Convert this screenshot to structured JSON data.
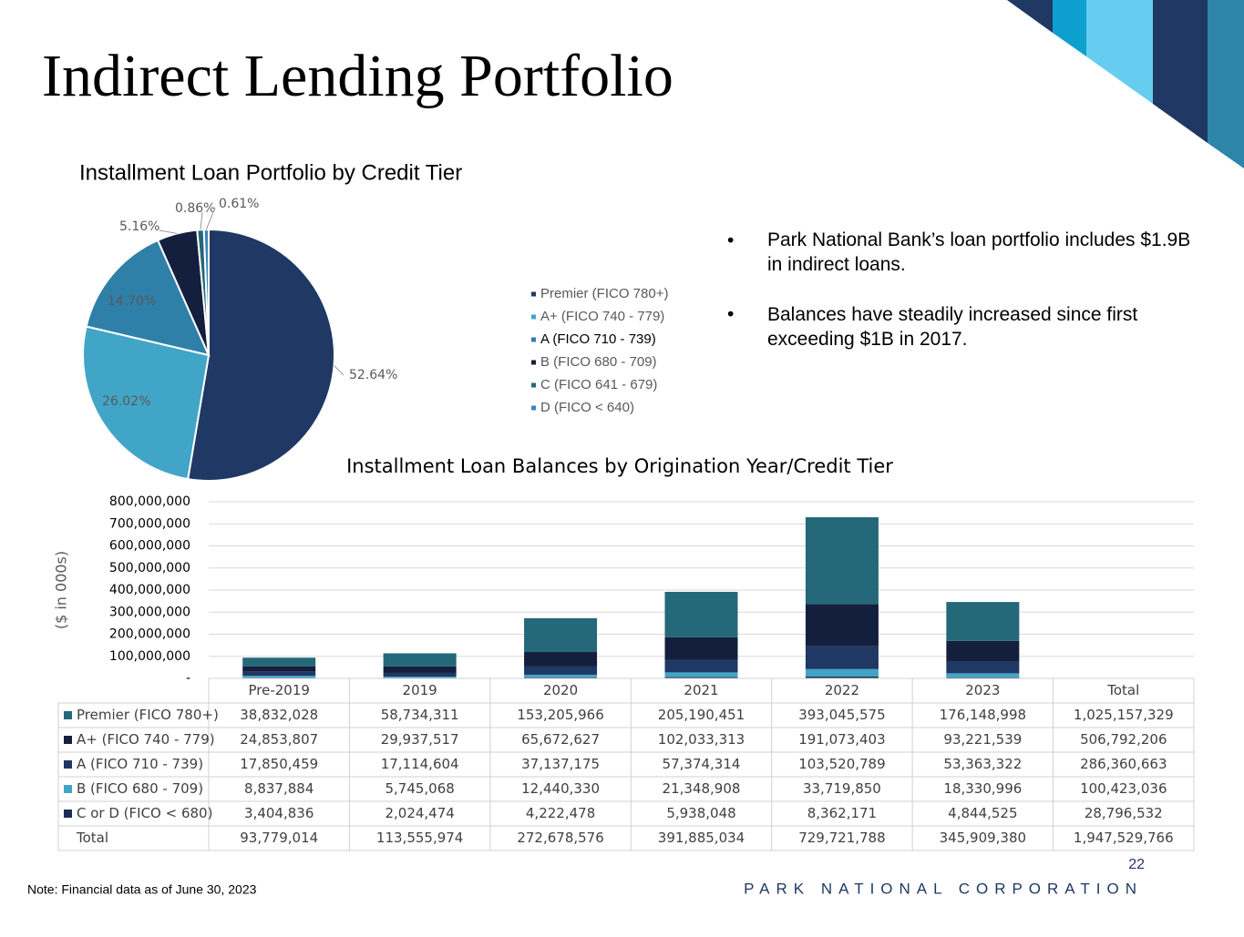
{
  "title": "Indirect Lending Portfolio",
  "bullets": [
    "Park National Bank’s loan portfolio includes $1.9B in indirect loans.",
    "Balances have steadily increased since first exceeding $1B in 2017."
  ],
  "note": "Note: Financial data as of June 30, 2023",
  "page_number": 22,
  "footer": "PARK NATIONAL CORPORATION",
  "chart_data": [
    {
      "type": "pie",
      "title": "Installment Loan Portfolio by Credit Tier",
      "categories": [
        "Premier (FICO 780+)",
        "A+ (FICO 740 - 779)",
        "A (FICO 710 - 739)",
        "B (FICO 680 - 709)",
        "C (FICO 641 - 679)",
        "D (FICO < 640)"
      ],
      "values": [
        52.64,
        26.02,
        14.7,
        5.16,
        0.86,
        0.61
      ],
      "value_labels": [
        "52.64%",
        "26.02%",
        "14.70%",
        "5.16%",
        "0.86%",
        "0.61%"
      ],
      "colors": [
        "#1f3864",
        "#41a5c8",
        "#2e80a8",
        "#141f3d",
        "#24687a",
        "#3a86b8"
      ],
      "legend": "right"
    },
    {
      "type": "stacked_bar",
      "title": "Installment Loan Balances by Origination Year/Credit Tier",
      "ylabel": "($ in 000s)",
      "categories": [
        "Pre-2019",
        "2019",
        "2020",
        "2021",
        "2022",
        "2023"
      ],
      "ylim": [
        0,
        800000000
      ],
      "yticks": [
        {
          "value": 0,
          "label": "-"
        },
        {
          "value": 100000000,
          "label": "100,000,000"
        },
        {
          "value": 200000000,
          "label": "200,000,000"
        },
        {
          "value": 300000000,
          "label": "300,000,000"
        },
        {
          "value": 400000000,
          "label": "400,000,000"
        },
        {
          "value": 500000000,
          "label": "500,000,000"
        },
        {
          "value": 600000000,
          "label": "600,000,000"
        },
        {
          "value": 700000000,
          "label": "700,000,000"
        },
        {
          "value": 800000000,
          "label": "800,000,000"
        }
      ],
      "grid": true,
      "series": [
        {
          "name": "Premier (FICO 780+)",
          "color": "#24687a",
          "values": [
            38832028,
            58734311,
            153205966,
            205190451,
            393045575,
            176148998
          ],
          "value_labels": [
            "38,832,028",
            "58,734,311",
            "153,205,966",
            "205,190,451",
            "393,045,575",
            "176,148,998"
          ],
          "total": 1025157329,
          "total_label": "1,025,157,329"
        },
        {
          "name": "A+ (FICO 740 - 779)",
          "color": "#141f3d",
          "values": [
            24853807,
            29937517,
            65672627,
            102033313,
            191073403,
            93221539
          ],
          "value_labels": [
            "24,853,807",
            "29,937,517",
            "65,672,627",
            "102,033,313",
            "191,073,403",
            "93,221,539"
          ],
          "total": 506792206,
          "total_label": "506,792,206"
        },
        {
          "name": "A (FICO 710 - 739)",
          "color": "#1f3864",
          "values": [
            17850459,
            17114604,
            37137175,
            57374314,
            103520789,
            53363322
          ],
          "value_labels": [
            "17,850,459",
            "17,114,604",
            "37,137,175",
            "57,374,314",
            "103,520,789",
            "53,363,322"
          ],
          "total": 286360663,
          "total_label": "286,360,663"
        },
        {
          "name": "B (FICO 680 - 709)",
          "color": "#41a5c8",
          "values": [
            8837884,
            5745068,
            12440330,
            21348908,
            33719850,
            18330996
          ],
          "value_labels": [
            "8,837,884",
            "5,745,068",
            "12,440,330",
            "21,348,908",
            "33,719,850",
            "18,330,996"
          ],
          "total": 100423036,
          "total_label": "100,423,036"
        },
        {
          "name": "C or D (FICO < 680)",
          "color": "#1c2e55",
          "values": [
            3404836,
            2024474,
            4222478,
            5938048,
            8362171,
            4844525
          ],
          "value_labels": [
            "3,404,836",
            "2,024,474",
            "4,222,478",
            "5,938,048",
            "8,362,171",
            "4,844,525"
          ],
          "total": 28796532,
          "total_label": "28,796,532"
        }
      ],
      "total_label": "Total",
      "totals": [
        93779014,
        113555974,
        272678576,
        391885034,
        729721788,
        345909380
      ],
      "totals_labels": [
        "93,779,014",
        "113,555,974",
        "272,678,576",
        "391,885,034",
        "729,721,788",
        "345,909,380"
      ],
      "grand_total": 1947529766,
      "grand_total_label": "1,947,529,766"
    }
  ]
}
